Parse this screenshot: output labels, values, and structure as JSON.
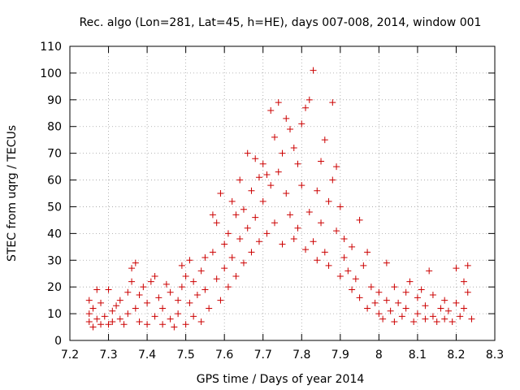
{
  "chart_data": {
    "type": "scatter",
    "title": "Rec. algo (Lon=281, Lat=45, h=HE), days 007-008, 2014, window 001",
    "xlabel": "GPS time / Days of year 2014",
    "ylabel": "STEC from uqrg / TECUs",
    "xlim": [
      7.2,
      8.3
    ],
    "ylim": [
      0,
      110
    ],
    "xticks": [
      "7.2",
      "7.3",
      "7.4",
      "7.5",
      "7.6",
      "7.7",
      "7.8",
      "7.9",
      "8",
      "8.1",
      "8.2",
      "8.3"
    ],
    "yticks": [
      "0",
      "10",
      "20",
      "30",
      "40",
      "50",
      "60",
      "70",
      "80",
      "90",
      "100",
      "110"
    ],
    "grid": true,
    "marker": "plus",
    "color": "#cc0000",
    "series": [
      {
        "name": "STEC",
        "points": [
          [
            7.25,
            15
          ],
          [
            7.25,
            10
          ],
          [
            7.25,
            7
          ],
          [
            7.26,
            5
          ],
          [
            7.26,
            12
          ],
          [
            7.27,
            19
          ],
          [
            7.27,
            8
          ],
          [
            7.28,
            6
          ],
          [
            7.28,
            14
          ],
          [
            7.29,
            9
          ],
          [
            7.3,
            19
          ],
          [
            7.3,
            6
          ],
          [
            7.31,
            11
          ],
          [
            7.31,
            7
          ],
          [
            7.32,
            13
          ],
          [
            7.33,
            8
          ],
          [
            7.33,
            15
          ],
          [
            7.34,
            6
          ],
          [
            7.35,
            18
          ],
          [
            7.35,
            10
          ],
          [
            7.36,
            27
          ],
          [
            7.36,
            22
          ],
          [
            7.37,
            29
          ],
          [
            7.37,
            12
          ],
          [
            7.38,
            7
          ],
          [
            7.38,
            17
          ],
          [
            7.39,
            20
          ],
          [
            7.4,
            6
          ],
          [
            7.4,
            14
          ],
          [
            7.41,
            22
          ],
          [
            7.42,
            24
          ],
          [
            7.42,
            9
          ],
          [
            7.43,
            16
          ],
          [
            7.44,
            6
          ],
          [
            7.44,
            12
          ],
          [
            7.45,
            21
          ],
          [
            7.46,
            8
          ],
          [
            7.46,
            18
          ],
          [
            7.47,
            5
          ],
          [
            7.48,
            15
          ],
          [
            7.48,
            10
          ],
          [
            7.49,
            28
          ],
          [
            7.49,
            20
          ],
          [
            7.5,
            24
          ],
          [
            7.5,
            6
          ],
          [
            7.51,
            30
          ],
          [
            7.51,
            14
          ],
          [
            7.52,
            9
          ],
          [
            7.52,
            22
          ],
          [
            7.53,
            17
          ],
          [
            7.54,
            26
          ],
          [
            7.54,
            7
          ],
          [
            7.55,
            31
          ],
          [
            7.55,
            19
          ],
          [
            7.56,
            12
          ],
          [
            7.57,
            33
          ],
          [
            7.57,
            47
          ],
          [
            7.58,
            44
          ],
          [
            7.58,
            23
          ],
          [
            7.59,
            55
          ],
          [
            7.59,
            15
          ],
          [
            7.6,
            36
          ],
          [
            7.6,
            27
          ],
          [
            7.61,
            40
          ],
          [
            7.61,
            20
          ],
          [
            7.62,
            52
          ],
          [
            7.62,
            31
          ],
          [
            7.63,
            47
          ],
          [
            7.63,
            24
          ],
          [
            7.64,
            60
          ],
          [
            7.64,
            38
          ],
          [
            7.65,
            49
          ],
          [
            7.65,
            29
          ],
          [
            7.66,
            70
          ],
          [
            7.66,
            42
          ],
          [
            7.67,
            56
          ],
          [
            7.67,
            33
          ],
          [
            7.68,
            68
          ],
          [
            7.68,
            46
          ],
          [
            7.69,
            61
          ],
          [
            7.69,
            37
          ],
          [
            7.7,
            66
          ],
          [
            7.7,
            52
          ],
          [
            7.71,
            62
          ],
          [
            7.71,
            40
          ],
          [
            7.72,
            86
          ],
          [
            7.72,
            58
          ],
          [
            7.73,
            76
          ],
          [
            7.73,
            44
          ],
          [
            7.74,
            89
          ],
          [
            7.74,
            63
          ],
          [
            7.75,
            70
          ],
          [
            7.75,
            36
          ],
          [
            7.76,
            83
          ],
          [
            7.76,
            55
          ],
          [
            7.77,
            79
          ],
          [
            7.77,
            47
          ],
          [
            7.78,
            72
          ],
          [
            7.78,
            38
          ],
          [
            7.79,
            66
          ],
          [
            7.79,
            42
          ],
          [
            7.8,
            81
          ],
          [
            7.8,
            58
          ],
          [
            7.81,
            87
          ],
          [
            7.81,
            34
          ],
          [
            7.82,
            90
          ],
          [
            7.82,
            48
          ],
          [
            7.83,
            101
          ],
          [
            7.83,
            37
          ],
          [
            7.84,
            56
          ],
          [
            7.84,
            30
          ],
          [
            7.85,
            67
          ],
          [
            7.85,
            44
          ],
          [
            7.86,
            75
          ],
          [
            7.86,
            33
          ],
          [
            7.87,
            52
          ],
          [
            7.87,
            28
          ],
          [
            7.88,
            89
          ],
          [
            7.88,
            60
          ],
          [
            7.89,
            65
          ],
          [
            7.89,
            41
          ],
          [
            7.9,
            50
          ],
          [
            7.9,
            24
          ],
          [
            7.91,
            38
          ],
          [
            7.91,
            31
          ],
          [
            7.92,
            26
          ],
          [
            7.93,
            35
          ],
          [
            7.93,
            19
          ],
          [
            7.94,
            23
          ],
          [
            7.95,
            45
          ],
          [
            7.95,
            16
          ],
          [
            7.96,
            28
          ],
          [
            7.97,
            33
          ],
          [
            7.97,
            12
          ],
          [
            7.98,
            20
          ],
          [
            7.99,
            14
          ],
          [
            8.0,
            18
          ],
          [
            8.0,
            10
          ],
          [
            8.01,
            8
          ],
          [
            8.02,
            29
          ],
          [
            8.02,
            15
          ],
          [
            8.03,
            11
          ],
          [
            8.04,
            20
          ],
          [
            8.04,
            7
          ],
          [
            8.05,
            14
          ],
          [
            8.06,
            9
          ],
          [
            8.07,
            18
          ],
          [
            8.07,
            12
          ],
          [
            8.08,
            22
          ],
          [
            8.09,
            7
          ],
          [
            8.1,
            16
          ],
          [
            8.1,
            10
          ],
          [
            8.11,
            19
          ],
          [
            8.12,
            8
          ],
          [
            8.12,
            13
          ],
          [
            8.13,
            26
          ],
          [
            8.14,
            9
          ],
          [
            8.14,
            17
          ],
          [
            8.15,
            7
          ],
          [
            8.16,
            12
          ],
          [
            8.17,
            15
          ],
          [
            8.17,
            8
          ],
          [
            8.18,
            11
          ],
          [
            8.19,
            7
          ],
          [
            8.2,
            14
          ],
          [
            8.2,
            27
          ],
          [
            8.21,
            9
          ],
          [
            8.22,
            22
          ],
          [
            8.22,
            12
          ],
          [
            8.23,
            28
          ],
          [
            8.23,
            18
          ],
          [
            8.24,
            8
          ]
        ]
      }
    ]
  }
}
